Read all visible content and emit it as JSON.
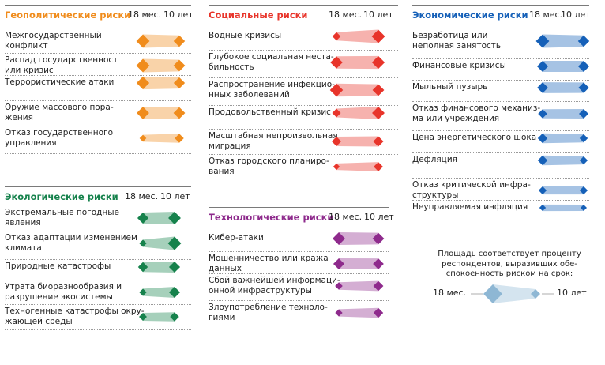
{
  "chart_data": {
    "type": "bubble-pair",
    "header_18": "18 мес.",
    "header_10": "10 лет",
    "panels": [
      {
        "title": "Геополитические риски",
        "color": "#f08c1c",
        "risks": [
          {
            "name": "Межгосударственный конфликт",
            "lines": [
              "Межгосударственный",
              "конфликт"
            ],
            "v18": 5,
            "v10": 3.6
          },
          {
            "name": "Распад государственности или кризис",
            "lines": [
              "Распад государственност",
              "или кризис"
            ],
            "v18": 5,
            "v10": 3.8
          },
          {
            "name": "Террористические атаки",
            "lines": [
              "Террористические атаки"
            ],
            "v18": 4.6,
            "v10": 3.5
          },
          {
            "name": "Оружие массового поражения",
            "lines": [
              "Оружие массового пора-",
              "жения"
            ],
            "v18": 4.3,
            "v10": 3.8
          },
          {
            "name": "Отказ государственного управления",
            "lines": [
              "Отказ государственного",
              "управления"
            ],
            "v18": 1.2,
            "v10": 2.2
          }
        ]
      },
      {
        "title": "Социальные риски",
        "color": "#e8342a",
        "risks": [
          {
            "name": "Водные кризисы",
            "lines": [
              "Водные кризисы"
            ],
            "v18": 1.8,
            "v10": 5
          },
          {
            "name": "Глубокое социальная нестабильность",
            "lines": [
              "Глубокое социальная неста-",
              "бильность"
            ],
            "v18": 4.2,
            "v10": 4.6
          },
          {
            "name": "Распространение инфекционных заболеваний",
            "lines": [
              "Распространение инфекцио-",
              "нных заболеваний"
            ],
            "v18": 4.8,
            "v10": 3.8
          },
          {
            "name": "Продовольственный кризис",
            "lines": [
              "Продовольственный кризис"
            ],
            "v18": 2,
            "v10": 4.4
          },
          {
            "name": "Масштабная непроизвольная миграция",
            "lines": [
              "Масштабная непроизвольная",
              "миграция"
            ],
            "v18": 2.4,
            "v10": 2.9
          },
          {
            "name": "Отказ городского планирования",
            "lines": [
              "Отказ городского планиро-",
              "вания"
            ],
            "v18": 1.1,
            "v10": 2.3
          }
        ]
      },
      {
        "title": "Экономические риски",
        "color": "#1560b8",
        "risks": [
          {
            "name": "Безработица или неполная занятость",
            "lines": [
              "Безработица или",
              "неполная занятость"
            ],
            "v18": 5,
            "v10": 3.6
          },
          {
            "name": "Финансовые кризисы",
            "lines": [
              "Финансовые кризисы"
            ],
            "v18": 3.4,
            "v10": 3.4
          },
          {
            "name": "Мыльный пузырь",
            "lines": [
              "Мыльный пузырь"
            ],
            "v18": 3.2,
            "v10": 3
          },
          {
            "name": "Отказ финансового механизма или учреждения",
            "lines": [
              "Отказ финансового механиз-",
              "ма или учреждения"
            ],
            "v18": 2.2,
            "v10": 2.4
          },
          {
            "name": "Цена энергетического шока",
            "lines": [
              "Цена энергетического шока"
            ],
            "v18": 2.6,
            "v10": 1.8
          },
          {
            "name": "Дефляция",
            "lines": [
              "Дефляция"
            ],
            "v18": 2.6,
            "v10": 1.7
          },
          {
            "name": "Отказ критической инфраструктуры",
            "lines": [
              "Отказ критической инфра-",
              "структуры"
            ],
            "v18": 1.7,
            "v10": 1.7
          },
          {
            "name": "Неуправляемая инфляция",
            "lines": [
              "Неуправляемая инфляция"
            ],
            "v18": 1.1,
            "v10": 1
          }
        ]
      },
      {
        "title": "Экологические риски",
        "color": "#16824c",
        "risks": [
          {
            "name": "Экстремальные погодные явления",
            "lines": [
              "Экстремальные погодные",
              "явления"
            ],
            "v18": 3.4,
            "v10": 4.4
          },
          {
            "name": "Отказ адаптации изменением климата",
            "lines": [
              "Отказ адаптации изменением",
              "климата"
            ],
            "v18": 1.4,
            "v10": 5
          },
          {
            "name": "Природные катастрофы",
            "lines": [
              "Природные катастрофы"
            ],
            "v18": 2.6,
            "v10": 3.4
          },
          {
            "name": "Утрата биоразнообразия и разрушение экосистемы",
            "lines": [
              "Утрата биоразнообразия и",
              "разрушение экосистемы"
            ],
            "v18": 1.4,
            "v10": 3.4
          },
          {
            "name": "Техногенные катастрофы окружающей среды",
            "lines": [
              "Техногенные катастрофы окру-",
              "жающей среды"
            ],
            "v18": 1.6,
            "v10": 2.2
          }
        ]
      },
      {
        "title": "Технологические риски",
        "color": "#8e2a8c",
        "risks": [
          {
            "name": "Кибер-атаки",
            "lines": [
              "Кибер-атаки"
            ],
            "v18": 4.4,
            "v10": 3.8
          },
          {
            "name": "Мошенничество или кража данных",
            "lines": [
              "Мошенничество или кража",
              "данных"
            ],
            "v18": 3.4,
            "v10": 3.2
          },
          {
            "name": "Сбой важнейшей информационной инфраструктуры",
            "lines": [
              "Сбой важнейшей информаци-",
              "онной инфраструктуры"
            ],
            "v18": 1.5,
            "v10": 2.8
          },
          {
            "name": "Злоупотребление технологиями",
            "lines": [
              "Злоупотребление техноло-",
              "гиями"
            ],
            "v18": 1.4,
            "v10": 2.6
          }
        ]
      }
    ],
    "legend": {
      "text_lines": [
        "Площадь соответствует проценту",
        "респондентов, выразивших обе-",
        "спокоенность риском на срок:"
      ],
      "label_18": "18 мес.",
      "label_10": "10 лет",
      "color": "#8eb7d4"
    }
  }
}
